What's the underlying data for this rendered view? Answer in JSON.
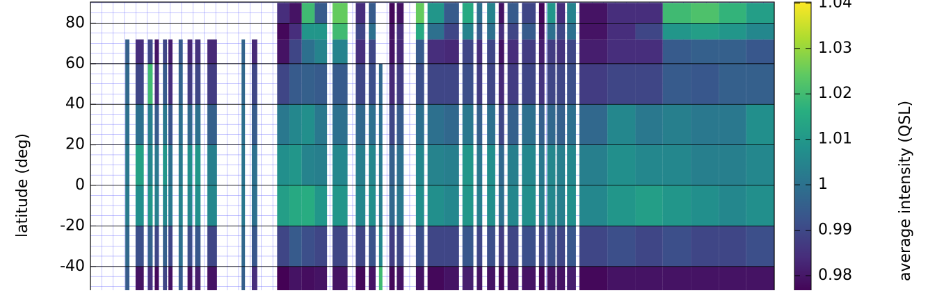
{
  "chart_data": {
    "type": "heatmap",
    "ylabel": "latitude (deg)",
    "colorbar_label": "average intensity (QSL)",
    "colormap": "viridis",
    "grid": true,
    "xlim": [
      0,
      100
    ],
    "ylim": [
      -51.7,
      90
    ],
    "yticks": [
      -40,
      -20,
      0,
      20,
      40,
      60,
      80
    ],
    "clim": [
      0.9768,
      1.0402
    ],
    "cticks": [
      0.98,
      0.99,
      1,
      1.01,
      1.02,
      1.03,
      1.04
    ],
    "lat_bins": [
      -60,
      -40,
      -20,
      0,
      20,
      40,
      60,
      72,
      80,
      90
    ],
    "x0": [
      5.1,
      6.6,
      8.4,
      9.4,
      10.6,
      11.4,
      12.9,
      14.2,
      15.3,
      17.1,
      22.1,
      23.6,
      27.3,
      29.1,
      30.9,
      32.8,
      35.4,
      38.8,
      40.7,
      42.2,
      43.7,
      44.8,
      47.6,
      49.3,
      51.7,
      54.4,
      56.5,
      58.0,
      59.7,
      61.0,
      63.1,
      65.6,
      66.8,
      68.2,
      69.7,
      71.5,
      75.6,
      79.7,
      83.7,
      87.8,
      91.9,
      95.9
    ],
    "x1": [
      5.7,
      7.8,
      9.1,
      10.0,
      11.2,
      12.0,
      13.5,
      14.9,
      16.1,
      18.5,
      22.6,
      24.4,
      29.1,
      30.9,
      32.8,
      34.6,
      37.6,
      40.2,
      41.7,
      42.7,
      44.5,
      45.8,
      48.8,
      51.7,
      53.9,
      56.0,
      57.3,
      59.2,
      60.5,
      62.6,
      65.1,
      66.4,
      68.0,
      69.4,
      71.0,
      75.6,
      79.7,
      83.7,
      87.8,
      91.9,
      95.9,
      100
    ],
    "values": [
      [
        0.995,
        0.998,
        1.003,
        1.002,
        1.0,
        0.998,
        0.996,
        null,
        null
      ],
      [
        0.98,
        0.992,
        1.008,
        1.013,
        1.0,
        0.99,
        0.985,
        null,
        null
      ],
      [
        0.985,
        0.996,
        1.01,
        1.006,
        1.004,
        1.02,
        0.99,
        null,
        null
      ],
      [
        0.978,
        0.99,
        1.004,
        1.002,
        0.995,
        0.985,
        0.98,
        null,
        null
      ],
      [
        0.99,
        0.996,
        1.006,
        1.01,
        1.002,
        0.995,
        0.99,
        null,
        null
      ],
      [
        0.98,
        0.99,
        1.002,
        1.0,
        0.993,
        0.985,
        0.982,
        null,
        null
      ],
      [
        0.995,
        1.0,
        1.005,
        1.003,
        1.0,
        0.997,
        0.995,
        null,
        null
      ],
      [
        0.98,
        0.992,
        1.006,
        1.008,
        0.998,
        0.988,
        0.984,
        null,
        null
      ],
      [
        0.982,
        0.994,
        1.008,
        1.01,
        1.0,
        0.99,
        0.986,
        null,
        null
      ],
      [
        0.98,
        0.99,
        1.006,
        1.004,
        0.996,
        0.988,
        0.984,
        null,
        null
      ],
      [
        0.996,
        0.998,
        1.002,
        1.001,
        1.0,
        0.998,
        0.997,
        null,
        null
      ],
      [
        0.985,
        0.994,
        1.0,
        1.0,
        0.995,
        0.99,
        0.984,
        null,
        null
      ],
      [
        0.977,
        0.99,
        1.012,
        1.008,
        1.002,
        0.99,
        0.98,
        0.978,
        0.985
      ],
      [
        0.98,
        0.995,
        1.015,
        1.01,
        1.006,
        0.995,
        0.99,
        0.985,
        0.98
      ],
      [
        0.979,
        0.992,
        1.016,
        1.005,
        1.008,
        0.996,
        1.0,
        1.01,
        1.02
      ],
      [
        0.98,
        0.99,
        1.01,
        1.004,
        1.002,
        0.995,
        1.005,
        1.01,
        0.995
      ],
      [
        0.98,
        0.99,
        1.01,
        1.006,
        1.0,
        0.995,
        1.005,
        1.02,
        1.025
      ],
      [
        0.978,
        0.99,
        1.006,
        1.004,
        0.998,
        0.99,
        0.985,
        0.99,
        0.985
      ],
      [
        0.98,
        0.993,
        1.008,
        1.006,
        1.0,
        0.992,
        0.99,
        1.0,
        0.995
      ],
      [
        1.02,
        1.006,
        1.004,
        1.003,
        1.0,
        0.998,
        null,
        null,
        null
      ],
      [
        0.978,
        0.988,
        0.998,
        0.996,
        0.99,
        0.984,
        0.98,
        0.98,
        0.978
      ],
      [
        0.98,
        0.99,
        1.002,
        1.0,
        0.995,
        0.988,
        0.984,
        0.985,
        0.98
      ],
      [
        0.98,
        0.992,
        1.008,
        1.006,
        1.0,
        0.992,
        0.995,
        1.015,
        1.025
      ],
      [
        0.978,
        0.99,
        1.008,
        1.005,
        1.0,
        0.99,
        0.985,
        1.0,
        1.01
      ],
      [
        0.98,
        0.99,
        1.006,
        1.004,
        0.998,
        0.99,
        0.984,
        0.99,
        0.995
      ],
      [
        0.982,
        0.994,
        1.01,
        1.01,
        1.002,
        0.992,
        0.99,
        1.005,
        1.015
      ],
      [
        0.98,
        0.99,
        1.004,
        1.002,
        0.996,
        0.988,
        0.985,
        0.995,
        1.0
      ],
      [
        0.98,
        0.992,
        1.008,
        1.008,
        1.0,
        0.99,
        0.99,
        1.0,
        1.005
      ],
      [
        0.978,
        0.988,
        1.0,
        0.998,
        0.99,
        0.984,
        0.98,
        0.985,
        0.98
      ],
      [
        0.98,
        0.99,
        1.006,
        1.004,
        0.996,
        0.988,
        0.985,
        0.99,
        0.995
      ],
      [
        0.98,
        0.992,
        1.008,
        1.006,
        1.0,
        0.99,
        0.988,
        0.995,
        0.99
      ],
      [
        0.978,
        0.99,
        1.004,
        1.002,
        0.996,
        0.986,
        0.982,
        0.98,
        0.978
      ],
      [
        0.98,
        0.992,
        1.006,
        1.006,
        0.998,
        0.99,
        0.988,
        1.0,
        1.01
      ],
      [
        0.98,
        0.99,
        1.004,
        1.004,
        0.996,
        0.99,
        0.986,
        0.99,
        0.985
      ],
      [
        0.982,
        0.994,
        1.008,
        1.006,
        1.0,
        0.992,
        0.99,
        1.0,
        1.005
      ],
      [
        0.978,
        0.99,
        1.006,
        1.004,
        0.998,
        0.988,
        0.982,
        0.98,
        0.98
      ],
      [
        0.98,
        0.992,
        1.01,
        1.008,
        1.006,
        0.99,
        0.985,
        0.985,
        0.985
      ],
      [
        0.98,
        0.99,
        1.012,
        1.006,
        1.002,
        0.99,
        0.985,
        0.99,
        0.985
      ],
      [
        0.98,
        0.992,
        1.01,
        1.006,
        1.004,
        0.995,
        0.995,
        1.01,
        1.02
      ],
      [
        0.98,
        0.99,
        1.008,
        1.004,
        1.002,
        0.994,
        0.996,
        1.012,
        1.022
      ],
      [
        0.98,
        0.99,
        1.006,
        1.004,
        1.002,
        0.996,
        0.996,
        1.01,
        1.018
      ],
      [
        0.98,
        0.992,
        1.008,
        1.006,
        1.008,
        0.996,
        0.994,
        1.006,
        1.012
      ]
    ]
  }
}
